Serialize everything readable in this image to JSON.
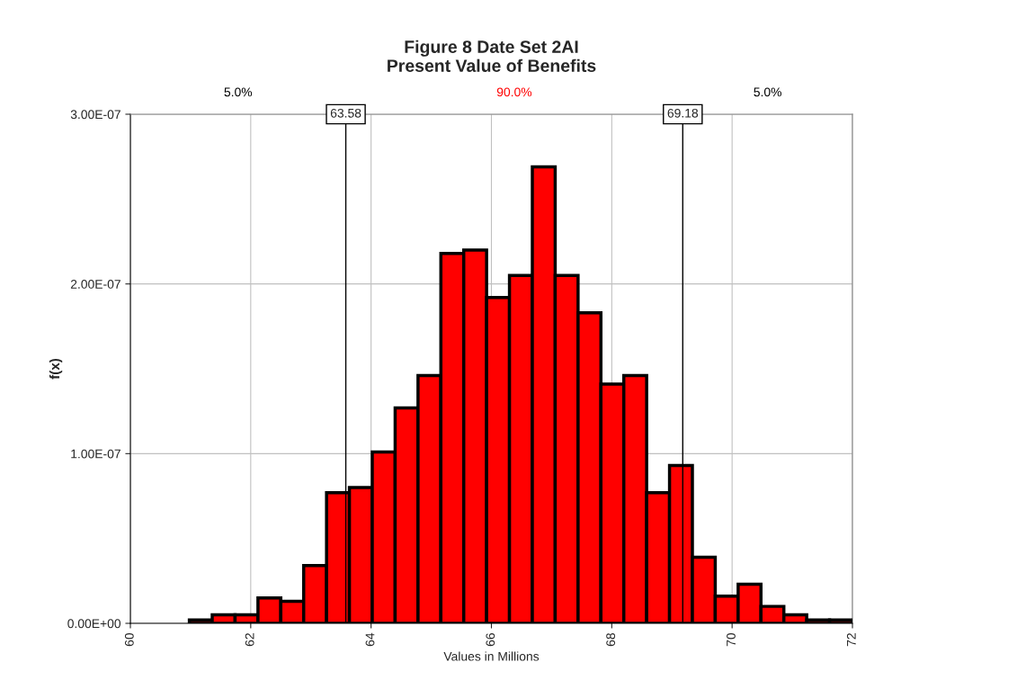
{
  "chart_data": {
    "type": "histogram",
    "title": "Figure 8 Date Set 2AI\nPresent Value of Benefits",
    "xlabel": "Values in Millions",
    "ylabel": "f(x)",
    "bins": [
      60.98,
      61.36,
      61.74,
      62.12,
      62.5,
      62.88,
      63.26,
      63.64,
      64.02,
      64.4,
      64.78,
      65.16,
      65.54,
      65.92,
      66.3,
      66.68,
      67.06,
      67.44,
      67.82,
      68.2,
      68.58,
      68.96,
      69.34,
      69.72,
      70.1,
      70.48,
      70.86,
      71.24,
      71.62,
      72.0
    ],
    "values": [
      2e-09,
      5e-09,
      5e-09,
      1.5e-08,
      1.3e-08,
      3.4e-08,
      7.7e-08,
      8e-08,
      1.01e-07,
      1.27e-07,
      1.46e-07,
      2.18e-07,
      2.2e-07,
      1.92e-07,
      2.05e-07,
      2.69e-07,
      2.05e-07,
      1.83e-07,
      1.41e-07,
      1.46e-07,
      7.7e-08,
      9.3e-08,
      3.9e-08,
      1.6e-08,
      2.3e-08,
      1e-08,
      5e-09,
      2e-09,
      2e-09
    ],
    "color": "#ff0000",
    "xlim": [
      60,
      72
    ],
    "xticks": [
      60,
      62,
      64,
      66,
      68,
      70,
      72
    ],
    "ylim": [
      0,
      3e-07
    ],
    "yticks": [
      {
        "value": 0,
        "label": "0.00E+00"
      },
      {
        "value": 1e-07,
        "label": "1.00E-07"
      },
      {
        "value": 2e-07,
        "label": "2.00E-07"
      },
      {
        "value": 3e-07,
        "label": "3.00E-07"
      }
    ],
    "grid": true,
    "ref_lines": [
      {
        "axis": "x",
        "value": 63.58,
        "label": "63.58",
        "color": "#000000"
      },
      {
        "axis": "x",
        "value": 69.18,
        "label": "69.18",
        "color": "#000000"
      }
    ],
    "annotations": [
      "5.0%",
      "90.0%",
      "5.0%"
    ]
  }
}
